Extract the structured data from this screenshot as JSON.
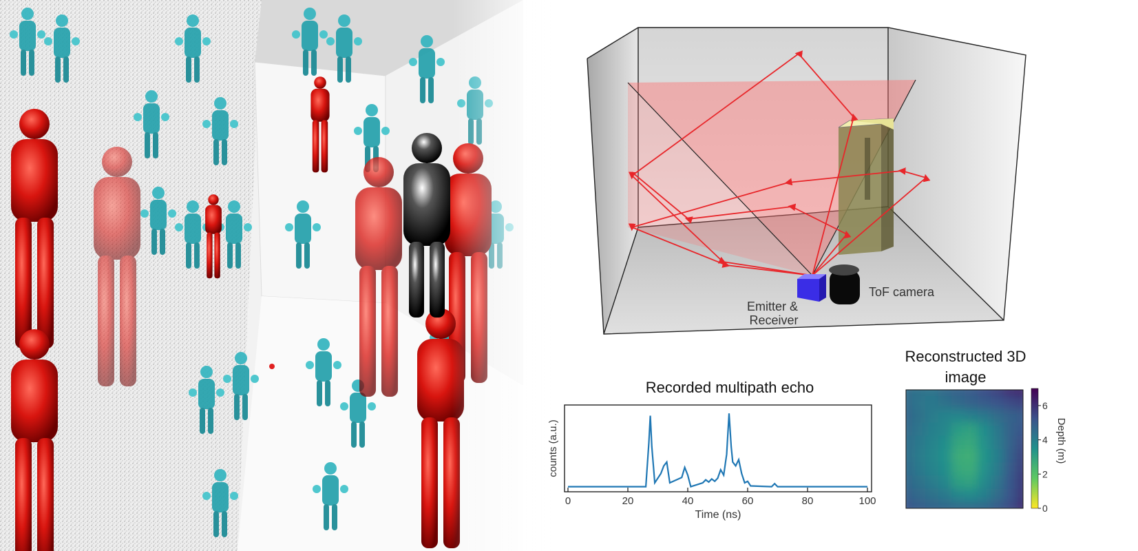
{
  "left_render": {
    "description_icon": "mirror-room-render"
  },
  "room": {
    "labels": {
      "emitter": "Emitter &",
      "receiver": "Receiver",
      "camera": "ToF camera"
    },
    "colors": {
      "laser": "#e8262a",
      "fov": "#ff8a8a",
      "emitter": "#4433ee",
      "camera": "#111111",
      "box_side": "#8a8550",
      "box_top": "#f3f0b0"
    }
  },
  "echo": {
    "title": "Recorded multipath echo",
    "xlabel": "Time (ns)",
    "ylabel": "counts (a.u.)",
    "xticks": [
      "0",
      "20",
      "40",
      "60",
      "80",
      "100"
    ]
  },
  "depth": {
    "title_line1": "Reconstructed 3D",
    "title_line2": "image",
    "colorbar_label": "Depth (m)",
    "colorbar_ticks": [
      "0",
      "2",
      "4",
      "6"
    ]
  },
  "chart_data": [
    {
      "type": "line",
      "title": "Recorded multipath echo",
      "xlabel": "Time (ns)",
      "ylabel": "counts (a.u.)",
      "xlim": [
        0,
        100
      ],
      "ylim": [
        0,
        1
      ],
      "color": "#1f77b4",
      "x": [
        0,
        26,
        27,
        27.5,
        28,
        29,
        31,
        32,
        33,
        34,
        38,
        39,
        40,
        41,
        45,
        46,
        47,
        48,
        49,
        50,
        51,
        52,
        53,
        53.8,
        54.5,
        55,
        56,
        57,
        58,
        59,
        60,
        61,
        68,
        69,
        70,
        100
      ],
      "y": [
        0.03,
        0.03,
        0.6,
        0.95,
        0.55,
        0.08,
        0.2,
        0.3,
        0.35,
        0.08,
        0.15,
        0.28,
        0.18,
        0.03,
        0.08,
        0.12,
        0.09,
        0.13,
        0.1,
        0.14,
        0.25,
        0.18,
        0.45,
        0.98,
        0.55,
        0.35,
        0.3,
        0.38,
        0.2,
        0.08,
        0.1,
        0.04,
        0.03,
        0.07,
        0.03,
        0.03
      ]
    },
    {
      "type": "heatmap",
      "title": "Reconstructed 3D image",
      "colorbar_label": "Depth (m)",
      "colorbar_range": [
        0,
        7
      ],
      "colormap": "viridis_r",
      "values": [
        [
          4.5,
          4.4,
          4.3,
          4.6,
          4.8,
          5.0,
          5.3,
          5.6,
          6.0,
          6.2
        ],
        [
          4.6,
          4.3,
          4.2,
          4.4,
          4.6,
          4.8,
          5.0,
          5.2,
          5.4,
          5.6
        ],
        [
          4.7,
          4.4,
          4.1,
          3.9,
          3.8,
          4.0,
          4.2,
          4.5,
          4.8,
          5.0
        ],
        [
          4.6,
          4.3,
          4.0,
          3.8,
          3.2,
          3.0,
          3.6,
          4.2,
          4.8,
          5.2
        ],
        [
          4.5,
          4.2,
          3.9,
          3.6,
          2.9,
          2.8,
          3.5,
          4.1,
          4.8,
          5.4
        ],
        [
          4.5,
          4.1,
          3.8,
          3.5,
          2.7,
          2.6,
          3.4,
          4.0,
          4.9,
          5.6
        ],
        [
          4.6,
          4.2,
          3.9,
          3.6,
          2.8,
          2.7,
          3.5,
          4.1,
          5.0,
          5.7
        ],
        [
          4.7,
          4.4,
          4.1,
          3.8,
          3.1,
          3.0,
          3.7,
          4.3,
          5.1,
          5.8
        ],
        [
          4.9,
          4.6,
          4.4,
          4.2,
          3.8,
          3.7,
          4.0,
          4.5,
          5.2,
          5.9
        ],
        [
          5.2,
          5.0,
          4.8,
          4.7,
          4.6,
          4.6,
          4.7,
          5.0,
          5.4,
          6.0
        ]
      ]
    }
  ]
}
